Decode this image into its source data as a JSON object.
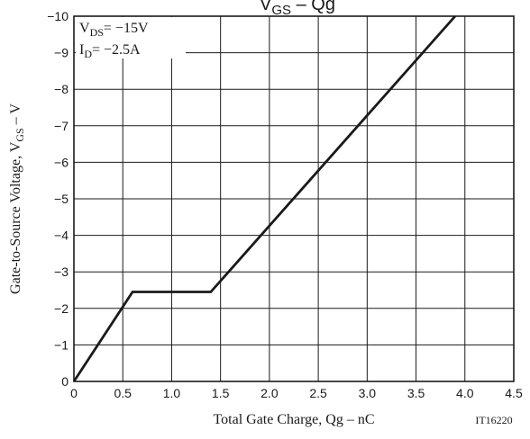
{
  "chart_data": {
    "type": "line",
    "title": {
      "main": "V",
      "sub": "GS",
      "rest": " – Qg"
    },
    "xlabel": "Total Gate Charge, Qg  –  nC",
    "ylabel": {
      "pre": "Gate-to-Source Voltage, V",
      "sub": "GS",
      "post": "  –  V"
    },
    "xlim": [
      0,
      4.5
    ],
    "ylim": [
      0,
      -10
    ],
    "x_ticks": [
      "0",
      "0.5",
      "1.0",
      "1.5",
      "2.0",
      "2.5",
      "3.0",
      "3.5",
      "4.0",
      "4.5"
    ],
    "y_ticks": [
      "0",
      "−1",
      "−2",
      "−3",
      "−4",
      "−5",
      "−6",
      "−7",
      "−8",
      "−9",
      "−10"
    ],
    "grid": true,
    "series": [
      {
        "x": [
          0,
          0.6,
          1.4,
          3.9
        ],
        "y": [
          0,
          -2.45,
          -2.45,
          -10
        ]
      }
    ],
    "annotations": [
      {
        "pre": "V",
        "sub": "DS",
        "post": "= −15V"
      },
      {
        "pre": "I",
        "sub": "D",
        "post": "= −2.5A"
      }
    ],
    "figure_id": "IT16220",
    "line_color": "#1a1a1a"
  }
}
